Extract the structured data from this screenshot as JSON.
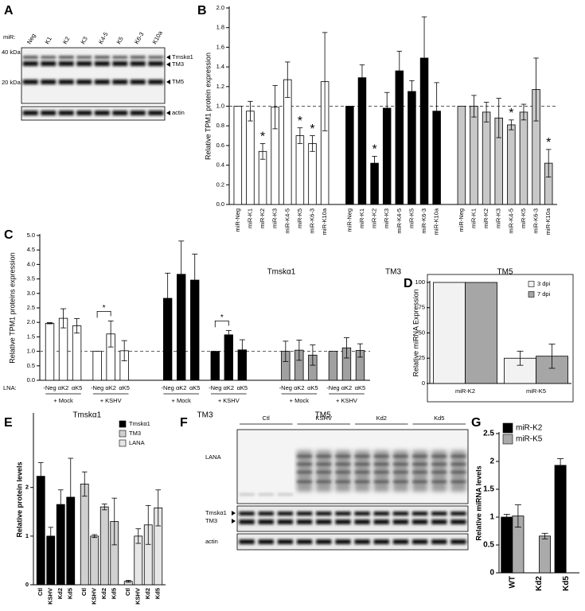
{
  "chart_data": [
    {
      "type": "bar",
      "panel": "B",
      "y_label": "Relative TPM1 protein expression",
      "categories": [
        "miR-Neg",
        "miR-K1",
        "miR-K2",
        "miR-K3",
        "miR-K4-5",
        "miR-K5",
        "miR-K6-3",
        "miR-K10a"
      ],
      "series": [
        {
          "name": "Tmskα1",
          "color": "#ffffff",
          "values": [
            1.0,
            0.95,
            0.54,
            0.99,
            1.27,
            0.7,
            0.62,
            1.25
          ],
          "errors": [
            null,
            0.1,
            0.08,
            0.22,
            0.18,
            0.08,
            0.08,
            0.5
          ],
          "stars": [
            null,
            null,
            "*",
            null,
            null,
            "*",
            "*",
            null
          ]
        },
        {
          "name": "TM3",
          "color": "#000000",
          "values": [
            1.0,
            1.29,
            0.42,
            0.98,
            1.36,
            1.15,
            1.49,
            0.95
          ],
          "errors": [
            null,
            0.13,
            0.07,
            0.16,
            0.2,
            0.11,
            0.42,
            0.29
          ],
          "stars": [
            null,
            null,
            "*",
            null,
            null,
            null,
            null,
            null
          ]
        },
        {
          "name": "TM5",
          "color": "#c8c8c8",
          "values": [
            1.0,
            1.0,
            0.94,
            0.88,
            0.81,
            0.94,
            1.17,
            0.42
          ],
          "errors": [
            null,
            0.11,
            0.1,
            0.2,
            0.05,
            0.08,
            0.32,
            0.14
          ],
          "stars": [
            null,
            null,
            null,
            null,
            "*",
            null,
            null,
            "*"
          ]
        }
      ],
      "ylim": [
        0,
        2
      ],
      "yticks": [
        {
          "value": 0,
          "label": "0.0"
        },
        0.2,
        0.4,
        0.6,
        0.8,
        {
          "value": 1,
          "label": "1.0"
        },
        1.2,
        1.4,
        1.6,
        1.8,
        {
          "value": 2,
          "label": "2.0"
        }
      ],
      "reference_line": 1
    },
    {
      "type": "bar",
      "panel": "C",
      "y_label": "Relative TPM1 proteins expression",
      "category_prefix": "LNA:",
      "categories": [
        "-Neg",
        "αK2",
        "αK5",
        "-Neg",
        "αK2",
        "αK5"
      ],
      "subgroups": [
        "+ Mock",
        "+ KSHV"
      ],
      "series": [
        {
          "name": "Tmskα1",
          "color": "#ffffff",
          "values": [
            1.97,
            2.14,
            1.88,
            1.0,
            1.6,
            1.02
          ],
          "errors": [
            0.02,
            0.33,
            0.25,
            null,
            0.45,
            0.35
          ],
          "stars": [
            null,
            null,
            null,
            null,
            "*",
            null
          ]
        },
        {
          "name": "TM3",
          "color": "#000000",
          "values": [
            2.83,
            3.66,
            3.46,
            1.0,
            1.57,
            1.05
          ],
          "errors": [
            0.87,
            1.15,
            0.9,
            null,
            0.15,
            0.35
          ],
          "stars": [
            null,
            null,
            null,
            null,
            "*",
            null
          ]
        },
        {
          "name": "TM5",
          "color": "#a0a0a0",
          "values": [
            1.0,
            1.04,
            0.87,
            1.0,
            1.12,
            1.03
          ],
          "errors": [
            0.35,
            0.35,
            0.35,
            null,
            0.35,
            0.23
          ]
        }
      ],
      "ylim": [
        0,
        5
      ],
      "yticks": [
        {
          "value": 0,
          "label": "0.0"
        },
        0.5,
        {
          "value": 1,
          "label": "1.0"
        },
        1.5,
        {
          "value": 2,
          "label": "2.0"
        },
        2.5,
        {
          "value": 3,
          "label": "3.0"
        },
        3.5,
        {
          "value": 4,
          "label": "4.0"
        },
        4.5,
        {
          "value": 5,
          "label": "5.0"
        }
      ],
      "reference_line": 1
    },
    {
      "type": "bar",
      "panel": "D",
      "y_label": "Relative miRNA Expression",
      "categories": [
        "miR-K2",
        "miR-K5"
      ],
      "series": [
        {
          "name": "3 dpi",
          "color": "#f2f2f2",
          "values": [
            100,
            25
          ],
          "errors": [
            null,
            7
          ]
        },
        {
          "name": "7 dpi",
          "color": "#a6a6a6",
          "values": [
            100,
            27
          ],
          "errors": [
            null,
            12
          ]
        }
      ],
      "ylim": [
        0,
        100
      ],
      "yticks": [
        0,
        25,
        50,
        75,
        100
      ],
      "legend": "upper right"
    },
    {
      "type": "bar",
      "panel": "E",
      "y_label": "Relative protein levels",
      "categories": [
        "Ctl",
        "KSHV",
        "Kd2",
        "Kd5"
      ],
      "series": [
        {
          "name": "Tmskα1",
          "color": "#000000",
          "values": [
            2.23,
            1.0,
            1.65,
            1.8
          ],
          "errors": [
            0.28,
            0.18,
            0.3,
            0.8
          ]
        },
        {
          "name": "TM3",
          "color": "#d0d0d0",
          "values": [
            2.07,
            1.0,
            1.6,
            1.3
          ],
          "errors": [
            0.25,
            0.03,
            0.06,
            0.48
          ]
        },
        {
          "name": "LANA",
          "color": "#e6e6e6",
          "values": [
            0.07,
            1.0,
            1.23,
            1.58
          ],
          "errors": [
            0.02,
            0.15,
            0.4,
            0.37
          ]
        }
      ],
      "ylim": [
        0,
        3.5
      ],
      "yticks": [
        0,
        1,
        2
      ],
      "legend": "upper right"
    },
    {
      "type": "bar",
      "panel": "G",
      "y_label": "Relative miRNA levels",
      "categories": [
        "WT",
        "Kd2",
        "Kd5"
      ],
      "series": [
        {
          "name": "miR-K2",
          "color": "#000000",
          "values": [
            1.0,
            null,
            1.93
          ],
          "errors": [
            0.05,
            null,
            0.12
          ]
        },
        {
          "name": "miR-K5",
          "color": "#aaaaaa",
          "values": [
            1.02,
            0.66,
            null
          ],
          "errors": [
            0.2,
            0.05,
            null
          ]
        }
      ],
      "ylim": [
        0,
        2.5
      ],
      "yticks": [
        0,
        0.5,
        1,
        1.5,
        2,
        2.5
      ],
      "legend": "upper left"
    }
  ],
  "blot_a": {
    "panel": "A",
    "prefix": "miR:",
    "lanes": [
      "Neg",
      "K1",
      "K2",
      "K3",
      "K4-5",
      "K5",
      "K6-3",
      "K10a"
    ],
    "markers": [
      "40 kDa",
      "20 kDa"
    ],
    "bands": [
      "Tmskα1",
      "TM3",
      "TM5"
    ],
    "control": "actin"
  },
  "blot_f": {
    "panel": "F",
    "groups": [
      "Ctl",
      "KSHV",
      "Kd2",
      "Kd5"
    ],
    "bands": [
      "LANA",
      "Tmskα1",
      "TM3"
    ],
    "control": "actin"
  }
}
